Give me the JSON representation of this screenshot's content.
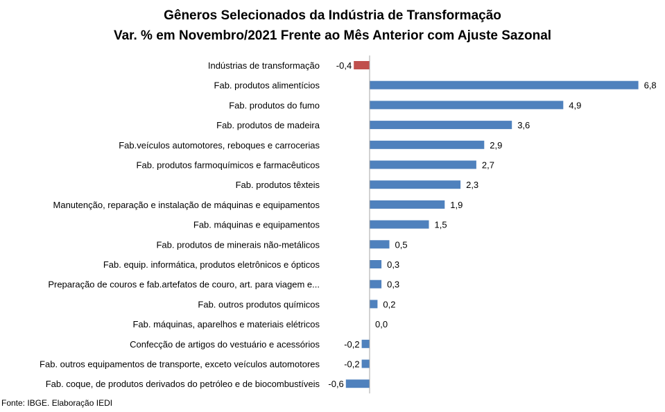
{
  "chart_data": {
    "type": "bar",
    "orientation": "horizontal",
    "title": "Gêneros Selecionados da Indústria de Transformação",
    "subtitle": "Var. % em Novembro/2021 Frente ao Mês Anterior com Ajuste Sazonal",
    "categories": [
      "Indústrias de transformação",
      "Fab. produtos alimentícios",
      "Fab. produtos do fumo",
      "Fab. produtos de madeira",
      "Fab.veículos automotores, reboques e carrocerias",
      "Fab. produtos farmoquímicos e farmacêuticos",
      "Fab. produtos têxteis",
      "Manutenção, reparação e instalação de máquinas e equipamentos",
      "Fab. máquinas e equipamentos",
      "Fab. produtos de minerais não-metálicos",
      "Fab. equip. informática, produtos eletrônicos e ópticos",
      "Preparação de couros e fab.artefatos de couro, art. para viagem e...",
      "Fab. outros produtos químicos",
      "Fab. máquinas, aparelhos e materiais elétricos",
      "Confecção de artigos do vestuário e acessórios",
      "Fab. outros equipamentos de transporte, exceto veículos automotores",
      "Fab. coque, de produtos derivados do petróleo e de biocombustíveis"
    ],
    "values": [
      -0.4,
      6.8,
      4.9,
      3.6,
      2.9,
      2.7,
      2.3,
      1.9,
      1.5,
      0.5,
      0.3,
      0.3,
      0.2,
      0.0,
      -0.2,
      -0.2,
      -0.6
    ],
    "value_labels": [
      "-0,4",
      "6,8",
      "4,9",
      "3,6",
      "2,9",
      "2,7",
      "2,3",
      "1,9",
      "1,5",
      "0,5",
      "0,3",
      "0,3",
      "0,2",
      "0,0",
      "-0,2",
      "-0,2",
      "-0,6"
    ],
    "bar_colors": [
      "#C0504D",
      "#4F81BD",
      "#4F81BD",
      "#4F81BD",
      "#4F81BD",
      "#4F81BD",
      "#4F81BD",
      "#4F81BD",
      "#4F81BD",
      "#4F81BD",
      "#4F81BD",
      "#4F81BD",
      "#4F81BD",
      "#4F81BD",
      "#4F81BD",
      "#4F81BD",
      "#4F81BD"
    ],
    "highlight_color": "#C0504D",
    "series_color": "#4F81BD",
    "axis_color": "#A6A6A6",
    "grid": false,
    "legend": false
  },
  "source_note": "Fonte: IBGE. Elaboração IEDI"
}
